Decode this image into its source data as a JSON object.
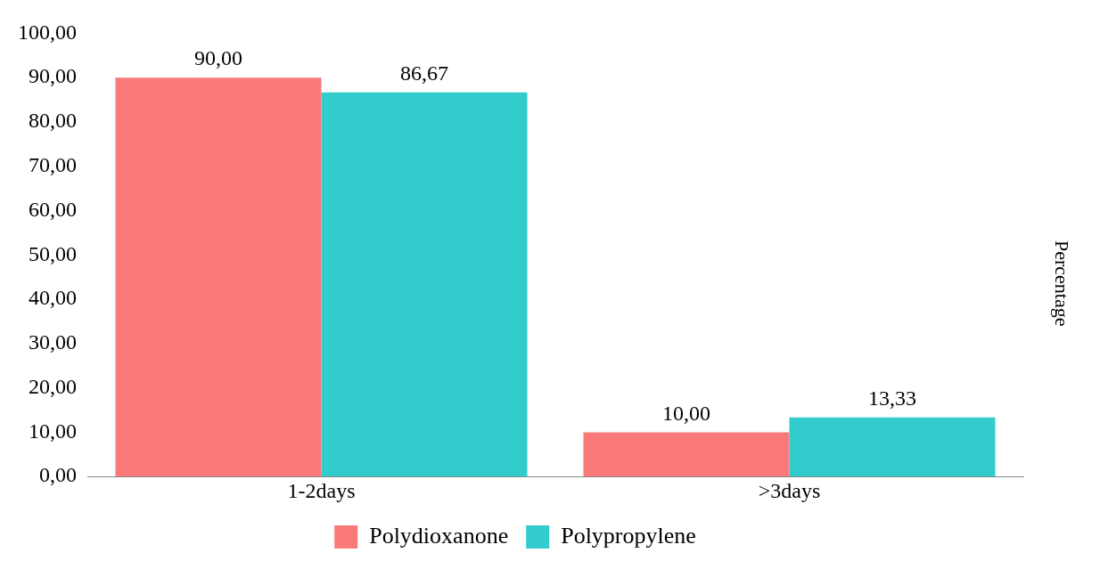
{
  "chart_data": {
    "type": "bar",
    "ylabel": "Percentage",
    "categories": [
      "1-2days",
      ">3days"
    ],
    "series": [
      {
        "name": "Polydioxanone",
        "color": "#fa7a7a",
        "values": [
          90,
          10
        ],
        "value_labels": [
          "90,00",
          "10,00"
        ]
      },
      {
        "name": "Polypropylene",
        "color": "#33cccc",
        "values": [
          86.67,
          13.33
        ],
        "value_labels": [
          "86,67",
          "13,33"
        ]
      }
    ],
    "ylim": [
      0,
      100
    ],
    "yticks": [
      {
        "value": 0,
        "label": "0,00"
      },
      {
        "value": 10,
        "label": "10,00"
      },
      {
        "value": 20,
        "label": "20,00"
      },
      {
        "value": 30,
        "label": "30,00"
      },
      {
        "value": 40,
        "label": "40,00"
      },
      {
        "value": 50,
        "label": "50,00"
      },
      {
        "value": 60,
        "label": "60,00"
      },
      {
        "value": 70,
        "label": "70,00"
      },
      {
        "value": 80,
        "label": "80,00"
      },
      {
        "value": 90,
        "label": "90,00"
      },
      {
        "value": 100,
        "label": "100,00"
      }
    ],
    "grid": false,
    "legend": "bottom"
  }
}
